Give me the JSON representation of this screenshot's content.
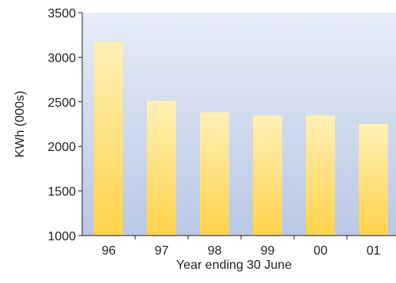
{
  "chart_data": {
    "type": "bar",
    "categories": [
      "96",
      "97",
      "98",
      "99",
      "00",
      "01"
    ],
    "values": [
      3170,
      2510,
      2380,
      2345,
      2345,
      2250
    ],
    "xlabel": "Year ending 30 June",
    "ylabel": "KWh (000s)",
    "ylim": [
      1000,
      3500
    ],
    "yticks": [
      "1000",
      "1500",
      "2000",
      "2500",
      "3000",
      "3500"
    ],
    "grid": false
  },
  "colors": {
    "plot_bg_top": "#e7ecf7",
    "plot_bg_bottom": "#b9c8e6",
    "bar_top": "#fff0b8",
    "bar_bottom": "#ffd24a",
    "axis": "#222222",
    "text": "#222222"
  }
}
